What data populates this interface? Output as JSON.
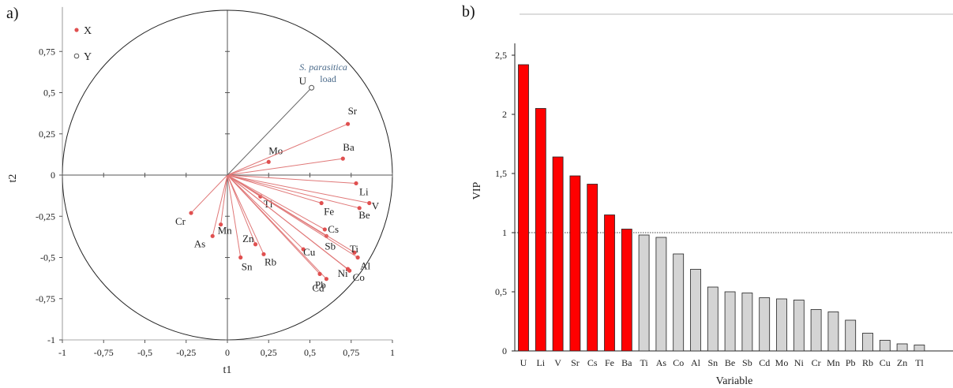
{
  "panels": {
    "a_label": "a)",
    "b_label": "b)"
  },
  "chart_data": [
    {
      "type": "scatter",
      "subtype": "correlation-circle",
      "xlabel": "t1",
      "ylabel": "t2",
      "xlim": [
        -1,
        1
      ],
      "ylim": [
        -1,
        1
      ],
      "xticks": [
        -1,
        -0.75,
        -0.5,
        -0.25,
        0,
        0.25,
        0.5,
        0.75,
        1
      ],
      "xtick_labels": [
        "-1",
        "-0,75",
        "-0,5",
        "-0,25",
        "0",
        "0,25",
        "0,5",
        "0,75",
        "1"
      ],
      "yticks": [
        0.75,
        0.5,
        0.25,
        0,
        -0.25,
        -0.5,
        -0.75,
        -1
      ],
      "ytick_labels": [
        "0,75",
        "0,5",
        "0,25",
        "0",
        "-0,25",
        "-0,5",
        "-0,75",
        "-1"
      ],
      "legend": [
        {
          "name": "X",
          "marker": "filled",
          "color": "#e05050"
        },
        {
          "name": "Y",
          "marker": "hollow",
          "color": "#555555"
        }
      ],
      "line_color_x": "#e07878",
      "line_color_y": "#666666",
      "annotation_y": [
        "S. parasitica",
        "load"
      ],
      "annotation_color": "#4a6a8a",
      "points_x": [
        {
          "name": "Mo",
          "x": 0.25,
          "y": 0.08
        },
        {
          "name": "Sr",
          "x": 0.73,
          "y": 0.31
        },
        {
          "name": "Ba",
          "x": 0.7,
          "y": 0.1
        },
        {
          "name": "Li",
          "x": 0.78,
          "y": -0.05
        },
        {
          "name": "V",
          "x": 0.86,
          "y": -0.17
        },
        {
          "name": "Be",
          "x": 0.8,
          "y": -0.2
        },
        {
          "name": "Tl",
          "x": 0.2,
          "y": -0.13
        },
        {
          "name": "Fe",
          "x": 0.57,
          "y": -0.17
        },
        {
          "name": "Cs",
          "x": 0.59,
          "y": -0.33
        },
        {
          "name": "Sb",
          "x": 0.6,
          "y": -0.37
        },
        {
          "name": "Ti",
          "x": 0.77,
          "y": -0.47
        },
        {
          "name": "Al",
          "x": 0.79,
          "y": -0.5
        },
        {
          "name": "Co",
          "x": 0.74,
          "y": -0.58
        },
        {
          "name": "Ni",
          "x": 0.73,
          "y": -0.57
        },
        {
          "name": "Cd",
          "x": 0.6,
          "y": -0.63
        },
        {
          "name": "Pb",
          "x": 0.56,
          "y": -0.6
        },
        {
          "name": "Cu",
          "x": 0.46,
          "y": -0.45
        },
        {
          "name": "Rb",
          "x": 0.22,
          "y": -0.48
        },
        {
          "name": "Zn",
          "x": 0.17,
          "y": -0.42
        },
        {
          "name": "Sn",
          "x": 0.08,
          "y": -0.5
        },
        {
          "name": "Cr",
          "x": -0.22,
          "y": -0.23
        },
        {
          "name": "Mn",
          "x": -0.04,
          "y": -0.3
        },
        {
          "name": "As",
          "x": -0.09,
          "y": -0.37
        }
      ],
      "points_y": [
        {
          "name": "U",
          "x": 0.51,
          "y": 0.53
        }
      ]
    },
    {
      "type": "bar",
      "xlabel": "Variable",
      "ylabel": "VIP",
      "ylim": [
        0,
        2.6
      ],
      "yticks": [
        0,
        0.5,
        1,
        1.5,
        2,
        2.5
      ],
      "ytick_labels": [
        "0",
        "0,5",
        "1",
        "1,5",
        "2",
        "2,5"
      ],
      "threshold": 1,
      "categories": [
        "U",
        "Li",
        "V",
        "Sr",
        "Cs",
        "Fe",
        "Ba",
        "Ti",
        "As",
        "Co",
        "Al",
        "Sn",
        "Be",
        "Sb",
        "Cd",
        "Mo",
        "Ni",
        "Cr",
        "Mn",
        "Pb",
        "Rb",
        "Cu",
        "Zn",
        "Tl"
      ],
      "values": [
        2.42,
        2.05,
        1.64,
        1.48,
        1.41,
        1.15,
        1.03,
        0.98,
        0.96,
        0.82,
        0.69,
        0.54,
        0.5,
        0.49,
        0.45,
        0.44,
        0.43,
        0.35,
        0.33,
        0.26,
        0.15,
        0.09,
        0.06,
        0.05
      ],
      "colors": {
        "above_threshold": "#ff0000",
        "below_threshold": "#d4d4d4",
        "edge": "#222222"
      }
    }
  ]
}
